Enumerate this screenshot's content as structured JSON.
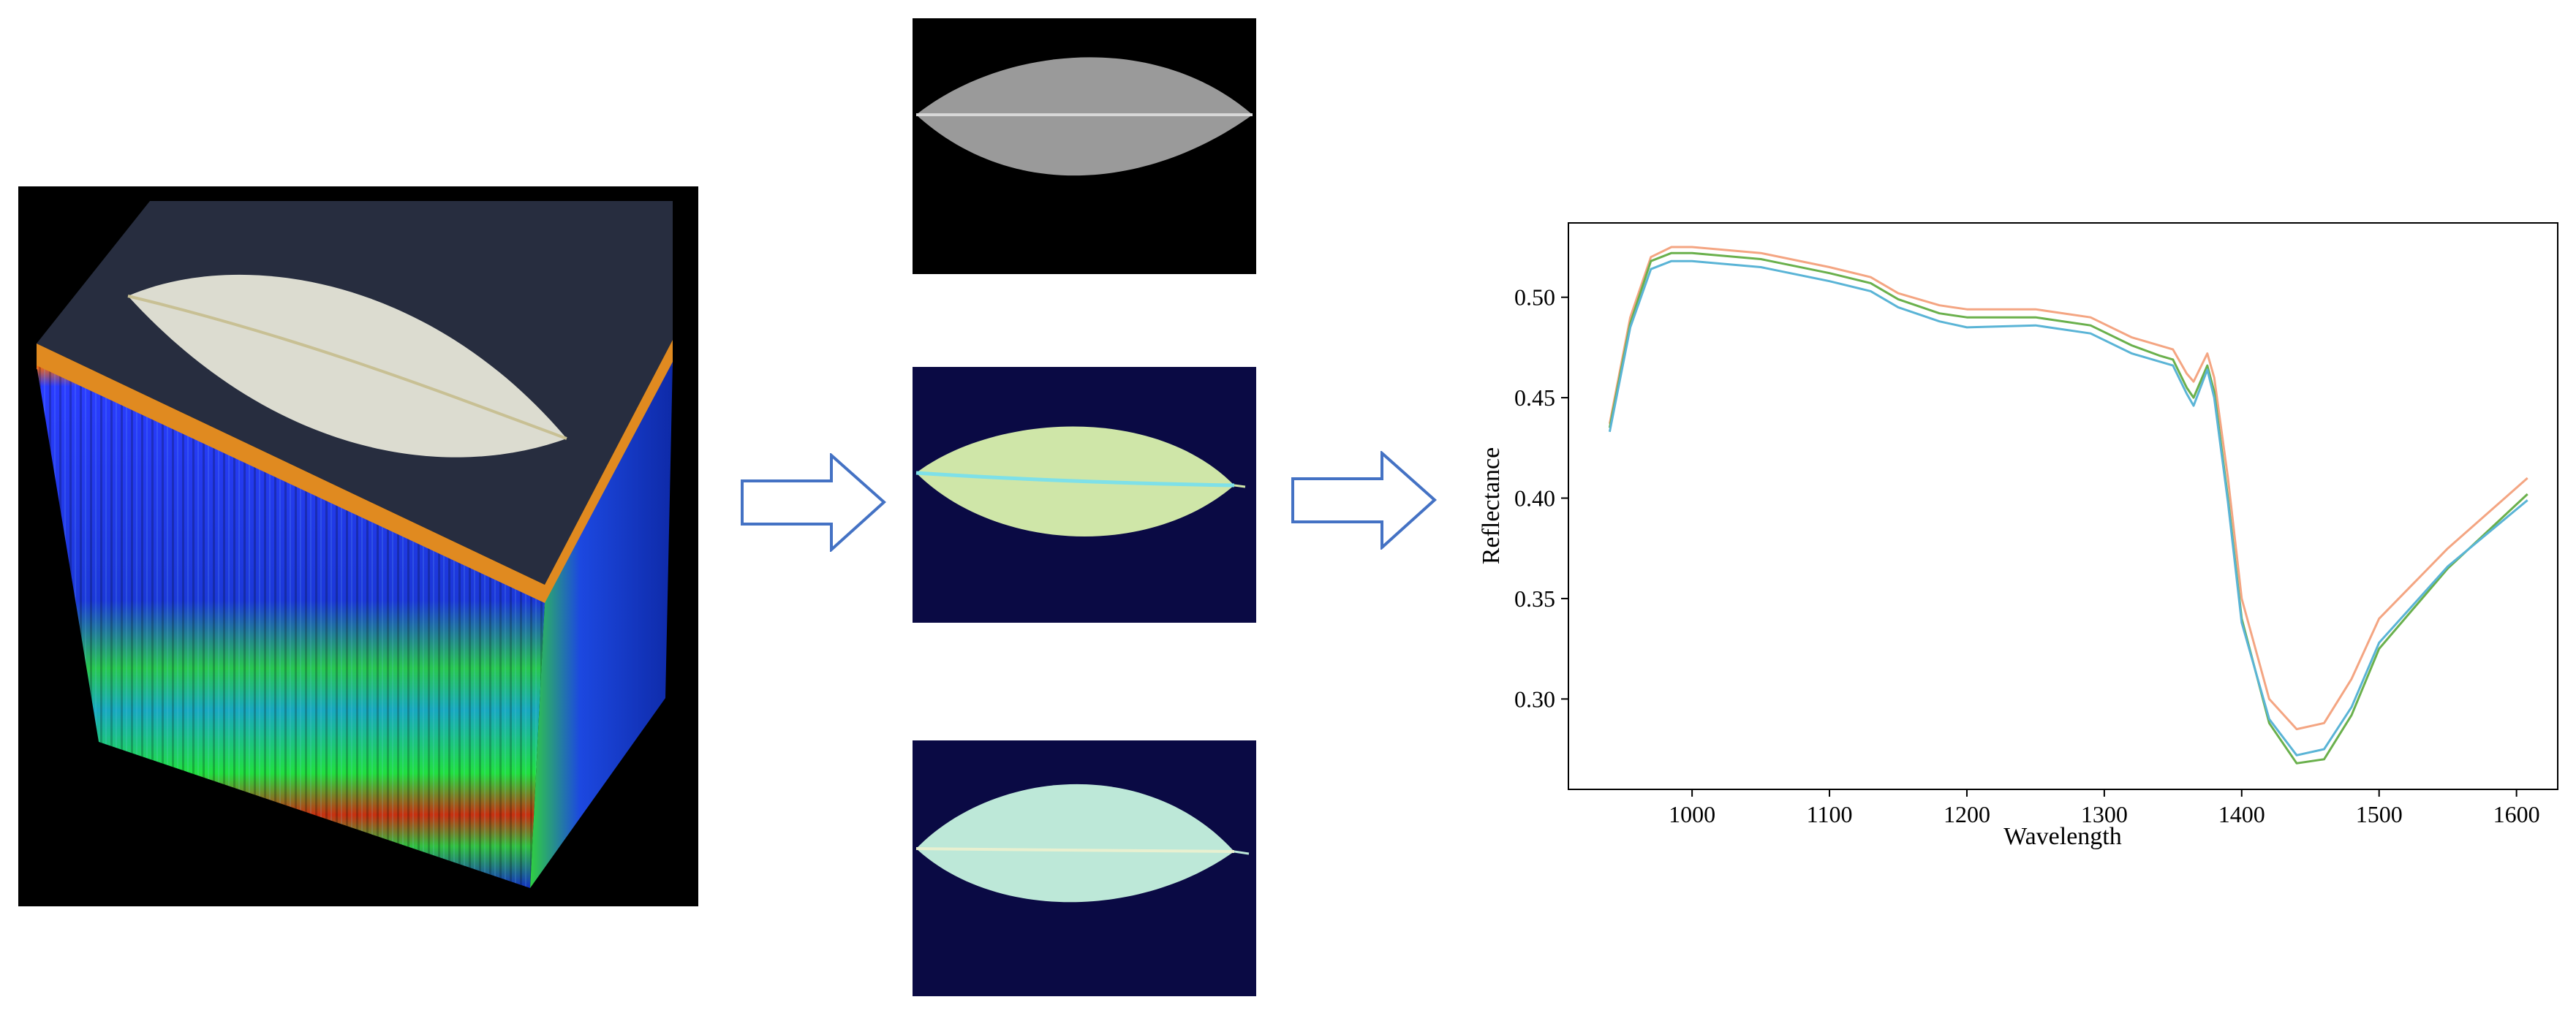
{
  "images": {
    "cube": "hyperspectral-cube",
    "leaf_gray": "grayscale-leaf",
    "leaf_color_1": "false-color-leaf",
    "leaf_color_2": "false-color-leaf"
  },
  "chart_data": {
    "type": "line",
    "xlabel": "Wavelength",
    "ylabel": "Reflectance",
    "xlim": [
      910,
      1630
    ],
    "ylim": [
      0.255,
      0.537
    ],
    "xticks": [
      1000,
      1100,
      1200,
      1300,
      1400,
      1500,
      1600
    ],
    "yticks": [
      0.3,
      0.35,
      0.4,
      0.45,
      0.5
    ],
    "ytick_labels": [
      "0.30",
      "0.35",
      "0.40",
      "0.45",
      "0.50"
    ],
    "grid": false,
    "legend": "none",
    "series": [
      {
        "color": "#f4a582",
        "x": [
          940,
          955,
          970,
          985,
          1000,
          1050,
          1100,
          1130,
          1150,
          1180,
          1200,
          1250,
          1290,
          1320,
          1340,
          1350,
          1360,
          1365,
          1370,
          1375,
          1380,
          1390,
          1400,
          1420,
          1440,
          1460,
          1480,
          1500,
          1550,
          1608
        ],
        "y": [
          0.437,
          0.49,
          0.52,
          0.525,
          0.525,
          0.522,
          0.515,
          0.51,
          0.502,
          0.496,
          0.494,
          0.494,
          0.49,
          0.48,
          0.476,
          0.474,
          0.462,
          0.458,
          0.465,
          0.472,
          0.46,
          0.41,
          0.35,
          0.3,
          0.285,
          0.288,
          0.31,
          0.34,
          0.375,
          0.41
        ]
      },
      {
        "color": "#6ab04c",
        "x": [
          940,
          955,
          970,
          985,
          1000,
          1050,
          1100,
          1130,
          1150,
          1180,
          1200,
          1250,
          1290,
          1320,
          1340,
          1350,
          1360,
          1365,
          1370,
          1375,
          1380,
          1390,
          1400,
          1420,
          1440,
          1460,
          1480,
          1500,
          1550,
          1608
        ],
        "y": [
          0.435,
          0.487,
          0.518,
          0.522,
          0.522,
          0.519,
          0.512,
          0.507,
          0.499,
          0.492,
          0.49,
          0.49,
          0.486,
          0.476,
          0.471,
          0.469,
          0.455,
          0.45,
          0.458,
          0.466,
          0.453,
          0.4,
          0.34,
          0.288,
          0.268,
          0.27,
          0.292,
          0.325,
          0.365,
          0.402
        ]
      },
      {
        "color": "#5ab4d6",
        "x": [
          940,
          955,
          970,
          985,
          1000,
          1050,
          1100,
          1130,
          1150,
          1180,
          1200,
          1250,
          1290,
          1320,
          1340,
          1350,
          1360,
          1365,
          1370,
          1375,
          1380,
          1390,
          1400,
          1420,
          1440,
          1460,
          1480,
          1500,
          1550,
          1608
        ],
        "y": [
          0.433,
          0.485,
          0.514,
          0.518,
          0.518,
          0.515,
          0.508,
          0.503,
          0.495,
          0.488,
          0.485,
          0.486,
          0.482,
          0.472,
          0.468,
          0.466,
          0.452,
          0.446,
          0.455,
          0.464,
          0.45,
          0.398,
          0.338,
          0.29,
          0.272,
          0.275,
          0.296,
          0.328,
          0.366,
          0.399
        ]
      }
    ]
  }
}
